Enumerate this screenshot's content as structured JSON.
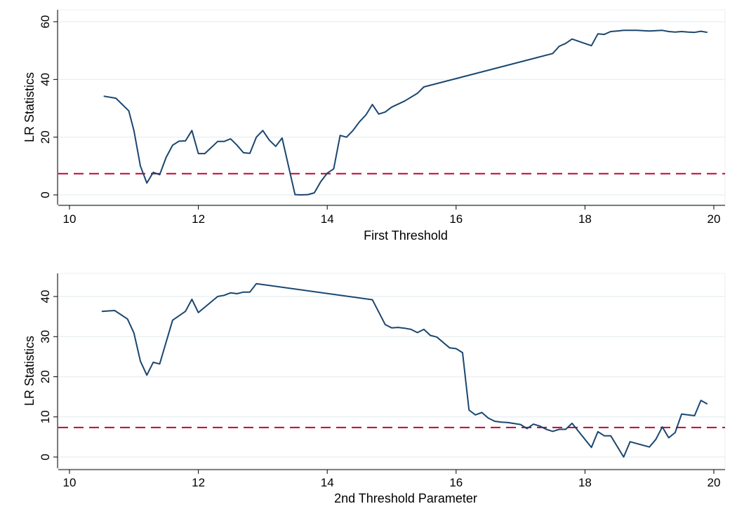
{
  "chart_data": [
    {
      "type": "line",
      "title": "",
      "xlabel": "First Threshold",
      "ylabel": "LR Statistics",
      "xlim": [
        10,
        20
      ],
      "ylim": [
        -3,
        63
      ],
      "xticks": [
        10,
        12,
        14,
        16,
        18,
        20
      ],
      "yticks": [
        0,
        20,
        40,
        60
      ],
      "grid": true,
      "critical_value": 7.35,
      "line_color": "#1a476f",
      "critical_color": "#c10534",
      "x": [
        10.53,
        10.72,
        10.92,
        11.0,
        11.1,
        11.2,
        11.3,
        11.4,
        11.5,
        11.6,
        11.7,
        11.8,
        11.9,
        12.0,
        12.1,
        12.3,
        12.4,
        12.5,
        12.6,
        12.7,
        12.8,
        12.9,
        13.0,
        13.1,
        13.2,
        13.3,
        13.5,
        13.6,
        13.7,
        13.8,
        13.9,
        14.0,
        14.1,
        14.2,
        14.3,
        14.4,
        14.5,
        14.6,
        14.7,
        14.8,
        14.9,
        15.0,
        15.2,
        15.4,
        15.5,
        17.5,
        17.6,
        17.7,
        17.8,
        18.1,
        18.2,
        18.3,
        18.4,
        18.5,
        18.6,
        18.7,
        18.8,
        18.9,
        19.0,
        19.1,
        19.2,
        19.3,
        19.4,
        19.5,
        19.6,
        19.7,
        19.8,
        19.9
      ],
      "y": [
        34.2,
        33.5,
        29.1,
        22.3,
        10.0,
        4.1,
        7.8,
        7.0,
        13.0,
        17.2,
        18.6,
        18.7,
        22.3,
        14.3,
        14.3,
        18.5,
        18.5,
        19.4,
        17.2,
        14.6,
        14.4,
        20.0,
        22.3,
        19.0,
        16.8,
        19.7,
        0.1,
        0.0,
        0.1,
        0.7,
        4.6,
        7.5,
        9.0,
        20.6,
        20.0,
        22.3,
        25.3,
        27.7,
        31.3,
        28.0,
        28.7,
        30.4,
        32.5,
        35.2,
        37.4,
        49.0,
        51.5,
        52.5,
        54.0,
        51.7,
        55.8,
        55.6,
        56.6,
        56.8,
        57.0,
        57.0,
        57.0,
        56.9,
        56.8,
        56.9,
        57.0,
        56.6,
        56.4,
        56.6,
        56.4,
        56.3,
        56.7,
        56.3
      ]
    },
    {
      "type": "line",
      "title": "",
      "xlabel": "2nd Threshold Parameter",
      "ylabel": "LR Statistics",
      "xlim": [
        10,
        20
      ],
      "ylim": [
        -2.5,
        46
      ],
      "xticks": [
        10,
        12,
        14,
        16,
        18,
        20
      ],
      "yticks": [
        0,
        10,
        20,
        30,
        40
      ],
      "grid": true,
      "critical_value": 7.35,
      "line_color": "#1a476f",
      "critical_color": "#c10534",
      "x": [
        10.5,
        10.7,
        10.9,
        11.0,
        11.1,
        11.2,
        11.3,
        11.4,
        11.6,
        11.8,
        11.9,
        12.0,
        12.3,
        12.4,
        12.5,
        12.6,
        12.7,
        12.8,
        12.9,
        14.7,
        14.9,
        15.0,
        15.1,
        15.2,
        15.3,
        15.4,
        15.5,
        15.6,
        15.7,
        15.9,
        16.0,
        16.1,
        16.2,
        16.3,
        16.4,
        16.5,
        16.6,
        16.7,
        16.8,
        17.0,
        17.1,
        17.2,
        17.3,
        17.4,
        17.5,
        17.6,
        17.7,
        17.8,
        18.1,
        18.2,
        18.3,
        18.4,
        18.6,
        18.7,
        19.0,
        19.1,
        19.2,
        19.3,
        19.4,
        19.5,
        19.7,
        19.8,
        19.9
      ],
      "y": [
        36.3,
        36.5,
        34.4,
        30.9,
        23.9,
        20.4,
        23.6,
        23.2,
        34.1,
        36.3,
        39.3,
        36.0,
        40.0,
        40.3,
        40.9,
        40.7,
        41.1,
        41.1,
        43.2,
        39.2,
        33.0,
        32.2,
        32.3,
        32.1,
        31.8,
        31.0,
        31.8,
        30.3,
        29.9,
        27.2,
        27.0,
        26.0,
        11.7,
        10.5,
        11.1,
        9.7,
        8.9,
        8.7,
        8.6,
        8.1,
        7.1,
        8.2,
        7.7,
        6.9,
        6.4,
        6.9,
        6.9,
        8.4,
        2.4,
        6.3,
        5.3,
        5.3,
        0.0,
        3.8,
        2.5,
        4.4,
        7.5,
        4.8,
        6.1,
        10.7,
        10.3,
        14.1,
        13.2
      ]
    }
  ]
}
